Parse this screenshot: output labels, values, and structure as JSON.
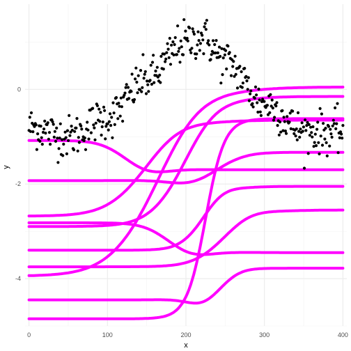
{
  "chart_data": {
    "type": "scatter",
    "title": "",
    "xlabel": "x",
    "ylabel": "y",
    "xlim": [
      -5,
      405
    ],
    "ylim": [
      -5.0,
      1.8
    ],
    "x_ticks": [
      0,
      100,
      200,
      300,
      400
    ],
    "y_ticks": [
      -4,
      -2,
      0
    ],
    "x_tick_labels": [
      "0",
      "100",
      "200",
      "300",
      "400"
    ],
    "y_tick_labels": [
      "-4",
      "-2",
      "0"
    ],
    "grid": true,
    "theme": "minimal",
    "scatter": {
      "color": "#000000",
      "n_points": 400,
      "description_points": [
        {
          "x": 0,
          "y": -0.8
        },
        {
          "x": 50,
          "y": -1.0
        },
        {
          "x": 100,
          "y": -0.6
        },
        {
          "x": 150,
          "y": 0.2
        },
        {
          "x": 200,
          "y": 1.0
        },
        {
          "x": 220,
          "y": 1.1
        },
        {
          "x": 250,
          "y": 0.6
        },
        {
          "x": 300,
          "y": -0.3
        },
        {
          "x": 350,
          "y": -0.9
        },
        {
          "x": 400,
          "y": -0.9
        }
      ]
    },
    "curve_color": "#ff00ff",
    "series": [
      {
        "left": -1.08,
        "right": -1.7,
        "x0": 140,
        "s": 18,
        "mid": -0.25
      },
      {
        "left": -1.93,
        "right": -1.33,
        "x0": 220,
        "s": 20,
        "mid": -0.25
      },
      {
        "left": -2.68,
        "right": -0.65,
        "x0": 160,
        "s": 25,
        "mid": 0.25
      },
      {
        "left": -2.82,
        "right": -3.45,
        "x0": 195,
        "s": 18,
        "mid": -0.25
      },
      {
        "left": -2.9,
        "right": -0.15,
        "x0": 205,
        "s": 22,
        "mid": 0.2
      },
      {
        "left": -3.4,
        "right": -2.05,
        "x0": 230,
        "s": 15,
        "mid": 0.2
      },
      {
        "left": -3.75,
        "right": -2.55,
        "x0": 260,
        "s": 20,
        "mid": 0.2
      },
      {
        "left": -3.95,
        "right": 0.05,
        "x0": 175,
        "s": 30,
        "mid": 0.4
      },
      {
        "left": -4.45,
        "right": -3.78,
        "x0": 230,
        "s": 14,
        "mid": -0.3
      },
      {
        "left": -4.85,
        "right": -0.62,
        "x0": 225,
        "s": 12,
        "mid": 0.0
      }
    ]
  }
}
